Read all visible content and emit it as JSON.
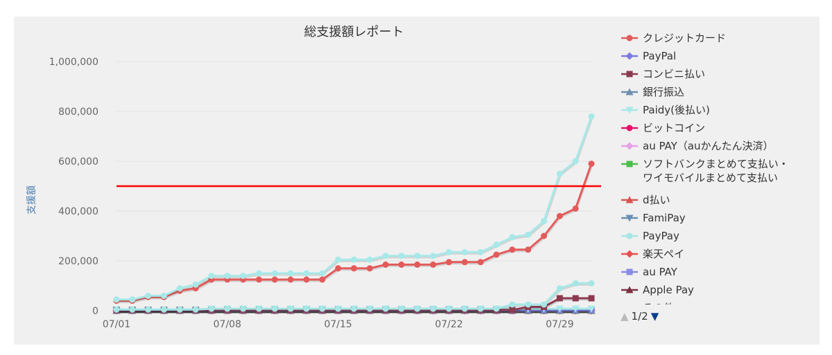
{
  "chart_data": {
    "type": "line",
    "title": "総支援額レポート",
    "ylabel": "支援額",
    "xlabel": "",
    "ylim": [
      0,
      1000000
    ],
    "yticks": [
      0,
      200000,
      400000,
      600000,
      800000,
      1000000
    ],
    "ytick_labels": [
      "0",
      "200,000",
      "400,000",
      "600,000",
      "800,000",
      "1,000,000"
    ],
    "x_dates": [
      "07/01",
      "07/02",
      "07/03",
      "07/04",
      "07/05",
      "07/06",
      "07/07",
      "07/08",
      "07/09",
      "07/10",
      "07/11",
      "07/12",
      "07/13",
      "07/14",
      "07/15",
      "07/16",
      "07/17",
      "07/18",
      "07/19",
      "07/20",
      "07/21",
      "07/22",
      "07/23",
      "07/24",
      "07/25",
      "07/26",
      "07/27",
      "07/28",
      "07/29",
      "07/30",
      "07/31"
    ],
    "xtick_labels": [
      "07/01",
      "07/08",
      "07/15",
      "07/22",
      "07/29"
    ],
    "target_line": {
      "value": 500000,
      "color": "#ff0000"
    },
    "grid": true,
    "legend_position": "right",
    "legend_page": "1/2",
    "series": [
      {
        "name": "クレジットカード",
        "color": "#e35a5a",
        "marker": "circle",
        "values": [
          40000,
          40000,
          55000,
          55000,
          80000,
          90000,
          125000,
          125000,
          125000,
          125000,
          125000,
          125000,
          125000,
          125000,
          170000,
          170000,
          170000,
          185000,
          185000,
          185000,
          185000,
          195000,
          195000,
          195000,
          225000,
          245000,
          245000,
          300000,
          380000,
          410000,
          590000
        ]
      },
      {
        "name": "PayPal",
        "color": "#7a7adf",
        "marker": "diamond",
        "values": [
          2000,
          2000,
          2000,
          2000,
          2000,
          2000,
          2000,
          2000,
          2000,
          2000,
          2000,
          2000,
          2000,
          2000,
          2000,
          2000,
          2000,
          2000,
          2000,
          2000,
          2000,
          2000,
          2000,
          2000,
          2000,
          2000,
          2000,
          2000,
          2000,
          2000,
          2000
        ]
      },
      {
        "name": "コンビニ払い",
        "color": "#8b3a4f",
        "marker": "square",
        "values": [
          3000,
          3000,
          3000,
          3000,
          3000,
          3000,
          3000,
          3000,
          3000,
          3000,
          3000,
          3000,
          3000,
          3000,
          3000,
          3000,
          3000,
          3000,
          3000,
          3000,
          3000,
          3000,
          3000,
          3000,
          3000,
          3000,
          15000,
          15000,
          50000,
          50000,
          50000
        ]
      },
      {
        "name": "銀行振込",
        "color": "#6f8fb0",
        "marker": "triangle",
        "values": [
          1000,
          1000,
          1000,
          1000,
          1000,
          1000,
          1000,
          1000,
          1000,
          1000,
          1000,
          1000,
          1000,
          1000,
          1000,
          1000,
          1000,
          1000,
          1000,
          1000,
          1000,
          1000,
          1000,
          1000,
          1000,
          1000,
          1000,
          1000,
          1000,
          1000,
          1000
        ]
      },
      {
        "name": "Paidy(後払い)",
        "color": "#a8e8e8",
        "marker": "triangle-down",
        "values": [
          5000,
          5000,
          5000,
          5000,
          5000,
          5000,
          8000,
          8000,
          8000,
          8000,
          8000,
          8000,
          8000,
          8000,
          8000,
          8000,
          8000,
          8000,
          8000,
          8000,
          8000,
          8000,
          8000,
          8000,
          8000,
          8000,
          8000,
          8000,
          8000,
          8000,
          8000
        ]
      },
      {
        "name": "ビットコイン",
        "color": "#e8106a",
        "marker": "circle",
        "values": [
          0,
          0,
          0,
          0,
          0,
          0,
          0,
          0,
          0,
          0,
          0,
          0,
          0,
          0,
          0,
          0,
          0,
          0,
          0,
          0,
          0,
          0,
          0,
          0,
          0,
          0,
          0,
          0,
          0,
          0,
          0
        ]
      },
      {
        "name": "au PAY（auかんたん決済）",
        "color": "#e8a0e8",
        "marker": "diamond",
        "values": [
          0,
          0,
          0,
          0,
          0,
          0,
          0,
          0,
          0,
          0,
          0,
          0,
          0,
          0,
          0,
          0,
          0,
          0,
          0,
          0,
          0,
          0,
          0,
          0,
          0,
          0,
          0,
          0,
          0,
          0,
          0
        ]
      },
      {
        "name": "ソフトバンクまとめて支払い・\nワイモバイルまとめて支払い",
        "color": "#4bbf4b",
        "marker": "square",
        "values": [
          0,
          0,
          0,
          0,
          0,
          0,
          0,
          0,
          0,
          0,
          0,
          0,
          0,
          0,
          0,
          0,
          0,
          0,
          0,
          0,
          0,
          0,
          0,
          0,
          0,
          0,
          0,
          0,
          0,
          0,
          0
        ]
      },
      {
        "name": "d払い",
        "color": "#d9534f",
        "marker": "triangle",
        "values": [
          0,
          0,
          0,
          0,
          0,
          0,
          0,
          0,
          0,
          0,
          0,
          0,
          0,
          0,
          0,
          0,
          0,
          0,
          0,
          0,
          0,
          0,
          0,
          0,
          0,
          0,
          0,
          0,
          0,
          0,
          0
        ]
      },
      {
        "name": "FamiPay",
        "color": "#6a8fb5",
        "marker": "triangle-down",
        "values": [
          0,
          0,
          0,
          0,
          0,
          0,
          0,
          0,
          0,
          0,
          0,
          0,
          0,
          0,
          0,
          0,
          0,
          0,
          0,
          0,
          0,
          0,
          0,
          0,
          0,
          0,
          0,
          0,
          0,
          0,
          0
        ]
      },
      {
        "name": "PayPay",
        "color": "#a5e6e6",
        "marker": "circle",
        "values": [
          5000,
          5000,
          5000,
          5000,
          5000,
          5000,
          8000,
          8000,
          8000,
          8000,
          8000,
          8000,
          8000,
          8000,
          8000,
          8000,
          8000,
          8000,
          8000,
          8000,
          8000,
          8000,
          8000,
          8000,
          8000,
          25000,
          25000,
          25000,
          90000,
          110000,
          110000
        ]
      },
      {
        "name": "楽天ペイ",
        "color": "#e85050",
        "marker": "diamond",
        "values": [
          0,
          0,
          0,
          0,
          0,
          0,
          0,
          0,
          0,
          0,
          0,
          0,
          0,
          0,
          0,
          0,
          0,
          0,
          0,
          0,
          0,
          0,
          0,
          0,
          0,
          0,
          0,
          0,
          0,
          0,
          0
        ]
      },
      {
        "name": "au PAY",
        "color": "#8a8ae6",
        "marker": "square",
        "values": [
          0,
          0,
          0,
          0,
          0,
          0,
          0,
          0,
          0,
          0,
          0,
          0,
          0,
          0,
          0,
          0,
          0,
          0,
          0,
          0,
          0,
          0,
          0,
          0,
          0,
          0,
          0,
          0,
          0,
          0,
          0
        ]
      },
      {
        "name": "Apple Pay",
        "color": "#7a3040",
        "marker": "triangle",
        "values": [
          0,
          0,
          0,
          0,
          0,
          0,
          0,
          0,
          0,
          0,
          0,
          0,
          0,
          0,
          0,
          0,
          0,
          0,
          0,
          0,
          0,
          0,
          0,
          0,
          0,
          0,
          0,
          0,
          0,
          0,
          0
        ]
      },
      {
        "name": "その他",
        "color": "#a8e8e8",
        "marker": "circle",
        "is_total": true,
        "values": [
          45000,
          45000,
          60000,
          60000,
          90000,
          105000,
          140000,
          140000,
          140000,
          150000,
          150000,
          150000,
          150000,
          150000,
          205000,
          205000,
          205000,
          220000,
          220000,
          220000,
          220000,
          235000,
          235000,
          235000,
          265000,
          295000,
          305000,
          360000,
          550000,
          600000,
          780000
        ]
      }
    ]
  }
}
